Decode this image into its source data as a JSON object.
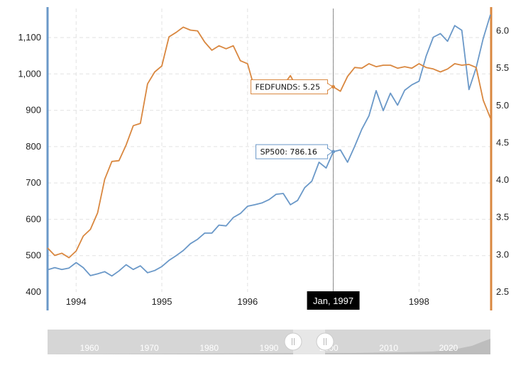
{
  "chart_data": {
    "type": "line",
    "x": [
      "1993-09",
      "1993-10",
      "1993-11",
      "1993-12",
      "1994-01",
      "1994-02",
      "1994-03",
      "1994-04",
      "1994-05",
      "1994-06",
      "1994-07",
      "1994-08",
      "1994-09",
      "1994-10",
      "1994-11",
      "1994-12",
      "1995-01",
      "1995-02",
      "1995-03",
      "1995-04",
      "1995-05",
      "1995-06",
      "1995-07",
      "1995-08",
      "1995-09",
      "1995-10",
      "1995-11",
      "1995-12",
      "1996-01",
      "1996-02",
      "1996-03",
      "1996-04",
      "1996-05",
      "1996-06",
      "1996-07",
      "1996-08",
      "1996-09",
      "1996-10",
      "1996-11",
      "1996-12",
      "1997-01",
      "1997-02",
      "1997-03",
      "1997-04",
      "1997-05",
      "1997-06",
      "1997-07",
      "1997-08",
      "1997-09",
      "1997-10",
      "1997-11",
      "1997-12",
      "1998-01",
      "1998-02",
      "1998-03",
      "1998-04",
      "1998-05",
      "1998-06",
      "1998-07",
      "1998-08",
      "1998-09",
      "1998-10",
      "1998-11"
    ],
    "series": [
      {
        "name": "SP500",
        "axis": "left",
        "color": "#6a98c8",
        "values": [
          461,
          467,
          462,
          466,
          481,
          467,
          445,
          450,
          456,
          444,
          458,
          475,
          462,
          472,
          453,
          459,
          470,
          487,
          500,
          514,
          533,
          545,
          562,
          562,
          584,
          582,
          605,
          616,
          636,
          640,
          645,
          654,
          669,
          671,
          640,
          652,
          687,
          705,
          757,
          741,
          786,
          791,
          757,
          801,
          848,
          885,
          954,
          899,
          947,
          914,
          955,
          970,
          980,
          1049,
          1101,
          1111,
          1090,
          1133,
          1120,
          957,
          1017,
          1098,
          1163
        ]
      },
      {
        "name": "FEDFUNDS",
        "axis": "right",
        "color": "#d9873f",
        "values": [
          3.09,
          2.99,
          3.02,
          2.96,
          3.05,
          3.25,
          3.34,
          3.56,
          4.01,
          4.25,
          4.26,
          4.47,
          4.73,
          4.76,
          5.29,
          5.45,
          5.53,
          5.92,
          5.98,
          6.05,
          6.01,
          6.0,
          5.85,
          5.74,
          5.8,
          5.76,
          5.8,
          5.6,
          5.56,
          5.22,
          5.31,
          5.22,
          5.24,
          5.27,
          5.4,
          5.22,
          5.3,
          5.24,
          5.31,
          5.29,
          5.25,
          5.19,
          5.39,
          5.51,
          5.5,
          5.56,
          5.52,
          5.54,
          5.54,
          5.5,
          5.52,
          5.5,
          5.56,
          5.51,
          5.49,
          5.45,
          5.49,
          5.56,
          5.54,
          5.55,
          5.51,
          5.07,
          4.83
        ]
      }
    ],
    "x_ticks": [
      "1994",
      "1995",
      "1996",
      "1997",
      "1998"
    ],
    "y_left": {
      "range": [
        400,
        1180
      ],
      "ticks": [
        400,
        500,
        600,
        700,
        800,
        900,
        1000,
        1100
      ],
      "tick_labels": [
        "400",
        "500",
        "600",
        "700",
        "800",
        "900",
        "1,000",
        "1,100"
      ],
      "color": "#6a98c8"
    },
    "y_right": {
      "range": [
        2.5,
        6.3
      ],
      "ticks": [
        2.5,
        3.0,
        3.5,
        4.0,
        4.5,
        5.0,
        5.5,
        6.0
      ],
      "tick_labels": [
        "2.5",
        "3.0",
        "3.5",
        "4.0",
        "4.5",
        "5.0",
        "5.5",
        "6.0"
      ],
      "color": "#d9873f"
    },
    "grid": true,
    "crosshair": {
      "label": "Jan, 1997",
      "x": "1997-01"
    },
    "tooltips": [
      {
        "series": "FEDFUNDS",
        "text": "FEDFUNDS: 5.25"
      },
      {
        "series": "SP500",
        "text": "SP500: 786.16"
      }
    ],
    "navigator": {
      "labels": [
        "1960",
        "1970",
        "1980",
        "1990",
        "2000",
        "2010",
        "2020"
      ]
    }
  }
}
